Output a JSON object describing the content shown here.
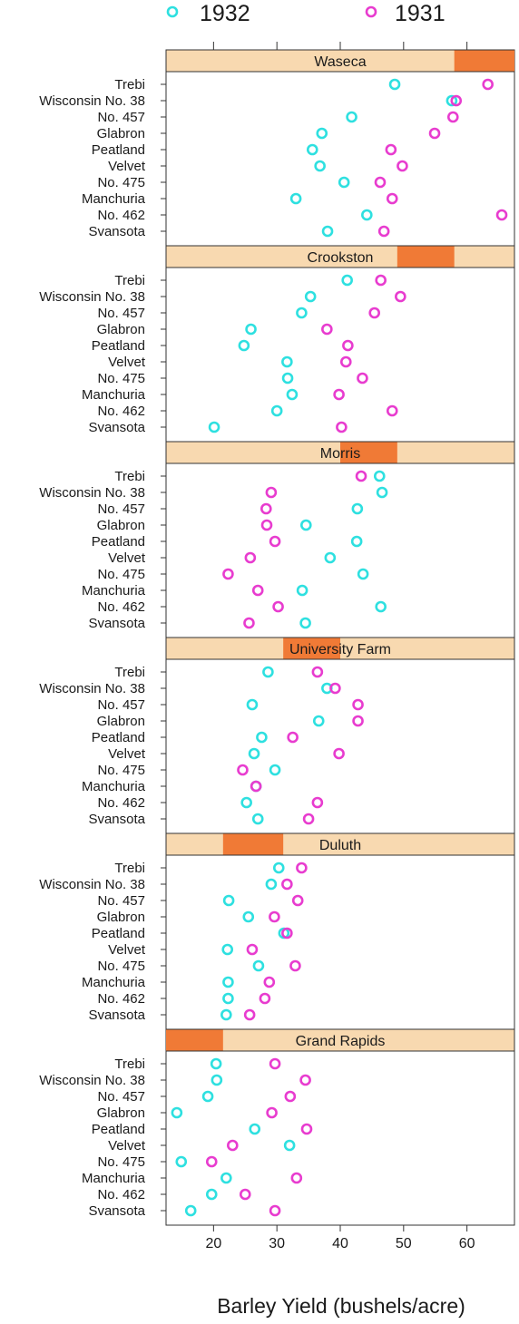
{
  "chart_data": {
    "type": "scatter",
    "xlabel": "Barley Yield (bushels/acre)",
    "xlim": [
      12.5,
      67.5
    ],
    "xticks": [
      20,
      30,
      40,
      50,
      60
    ],
    "top_ticks": [
      20,
      30,
      40,
      50,
      60
    ],
    "legend": {
      "placement": "top",
      "entries": [
        {
          "name": "1932",
          "color": "#2ee0e0"
        },
        {
          "name": "1931",
          "color": "#e83ccf"
        }
      ]
    },
    "colors": {
      "strip_bg": "#f8d9b0",
      "strip_fill": "#f07a36",
      "y1932": "#2ee0e0",
      "y1931": "#e83ccf"
    },
    "varieties": [
      "Trebi",
      "Wisconsin No. 38",
      "No. 457",
      "Glabron",
      "Peatland",
      "Velvet",
      "No. 475",
      "Manchuria",
      "No. 462",
      "Svansota"
    ],
    "panels": [
      {
        "site": "Waseca",
        "strip_range": [
          58,
          67.5
        ],
        "y1932": [
          48.6,
          57.6,
          41.8,
          37.1,
          35.6,
          36.8,
          40.6,
          33.0,
          44.2,
          38.0
        ],
        "y1931": [
          63.3,
          58.3,
          57.8,
          54.9,
          48.0,
          49.8,
          46.3,
          48.2,
          65.5,
          46.9
        ]
      },
      {
        "site": "Crookston",
        "strip_range": [
          49,
          58
        ],
        "y1932": [
          41.1,
          35.3,
          33.9,
          25.9,
          24.8,
          31.6,
          31.7,
          32.4,
          30.0,
          20.1
        ],
        "y1931": [
          46.4,
          49.5,
          45.4,
          37.9,
          41.2,
          40.9,
          43.5,
          39.8,
          48.2,
          40.2
        ]
      },
      {
        "site": "Morris",
        "strip_range": [
          40,
          49
        ],
        "y1932": [
          46.2,
          46.6,
          42.7,
          34.6,
          42.6,
          38.4,
          43.6,
          34.0,
          46.4,
          34.5
        ],
        "y1931": [
          43.3,
          29.1,
          28.3,
          28.4,
          29.7,
          25.8,
          22.3,
          27.0,
          30.2,
          25.6
        ]
      },
      {
        "site": "University Farm",
        "strip_range": [
          31,
          40
        ],
        "y1932": [
          28.6,
          37.9,
          26.1,
          36.6,
          27.6,
          26.4,
          29.7,
          26.7,
          25.2,
          27.0
        ],
        "y1931": [
          36.4,
          39.2,
          42.8,
          42.8,
          32.5,
          39.8,
          24.6,
          26.7,
          36.4,
          35.0
        ]
      },
      {
        "site": "Duluth",
        "strip_range": [
          21.5,
          31
        ],
        "y1932": [
          30.3,
          29.1,
          22.4,
          25.5,
          31.1,
          22.2,
          27.1,
          22.3,
          22.3,
          22.0
        ],
        "y1931": [
          33.9,
          31.6,
          33.3,
          29.6,
          31.6,
          26.1,
          32.9,
          28.8,
          28.1,
          25.7
        ]
      },
      {
        "site": "Grand Rapids",
        "strip_range": [
          12.5,
          21.5
        ],
        "y1932": [
          20.4,
          20.5,
          19.1,
          14.2,
          26.5,
          32.0,
          14.9,
          22.0,
          19.7,
          16.4
        ],
        "y1931": [
          29.7,
          34.5,
          32.1,
          29.2,
          34.7,
          23.0,
          19.7,
          33.1,
          25.0,
          29.7
        ]
      }
    ]
  }
}
